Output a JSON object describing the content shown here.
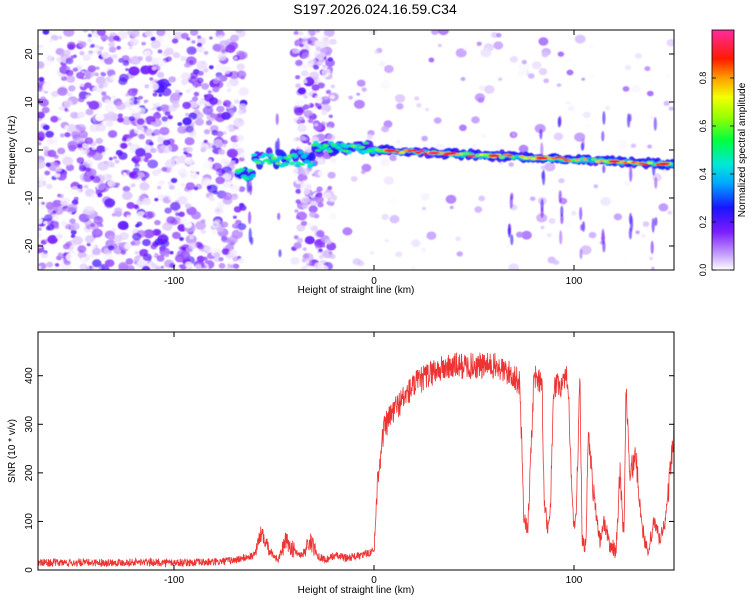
{
  "title": "S197.2026.024.16.59.C34",
  "chart_data": [
    {
      "type": "heatmap",
      "xlabel": "Height of straight line (km)",
      "ylabel": "Frequency (Hz)",
      "xlim": [
        -168,
        150
      ],
      "ylim": [
        -25,
        25
      ],
      "xticks": [
        -100,
        0,
        100
      ],
      "yticks": [
        20,
        10,
        0,
        -10,
        -20
      ],
      "colorbar": {
        "label": "Normalized spectral amplitude",
        "range": [
          0,
          1
        ],
        "ticks": [
          "0.0",
          "0.2",
          "0.4",
          "0.6",
          "0.8"
        ]
      },
      "features": [
        {
          "name": "noise-field",
          "x_range": [
            -168,
            -65
          ],
          "f_range": [
            -25,
            25
          ]
        },
        {
          "name": "noise-band",
          "x_range": [
            -40,
            -20
          ],
          "f_range": [
            -25,
            25
          ]
        },
        {
          "name": "tone-track",
          "x_range": [
            -68,
            150
          ],
          "f_start": -5,
          "f_end": -3,
          "peak_amplitude": 1.0
        }
      ]
    },
    {
      "type": "line",
      "xlabel": "Height of straight line (km)",
      "ylabel": "SNR (10 * v/v)",
      "xlim": [
        -168,
        150
      ],
      "ylim": [
        0,
        490
      ],
      "xticks": [
        -100,
        0,
        100
      ],
      "yticks": [
        0,
        100,
        200,
        300,
        400
      ],
      "series": [
        {
          "name": "SNR",
          "color": "#ee3333",
          "x": [
            -168,
            -150,
            -120,
            -100,
            -80,
            -70,
            -60,
            -56,
            -52,
            -48,
            -44,
            -40,
            -36,
            -32,
            -28,
            -24,
            -20,
            -14,
            -6,
            0,
            2,
            5,
            10,
            20,
            30,
            40,
            50,
            60,
            70,
            73,
            75,
            77,
            80,
            84,
            85,
            87,
            88,
            90,
            95,
            97,
            99,
            100,
            101,
            103,
            104,
            106,
            107,
            110,
            113,
            115,
            118,
            121,
            123,
            125,
            126,
            128,
            131,
            134,
            137,
            140,
            143,
            146,
            150
          ],
          "values": [
            15,
            15,
            16,
            15,
            16,
            20,
            30,
            80,
            40,
            20,
            60,
            40,
            30,
            60,
            30,
            20,
            30,
            25,
            30,
            40,
            200,
            290,
            330,
            380,
            410,
            420,
            420,
            420,
            400,
            380,
            100,
            90,
            400,
            390,
            150,
            80,
            100,
            380,
            380,
            400,
            150,
            80,
            100,
            400,
            60,
            50,
            280,
            150,
            60,
            100,
            50,
            40,
            200,
            60,
            380,
            200,
            230,
            90,
            30,
            100,
            60,
            110,
            290
          ]
        }
      ]
    }
  ]
}
